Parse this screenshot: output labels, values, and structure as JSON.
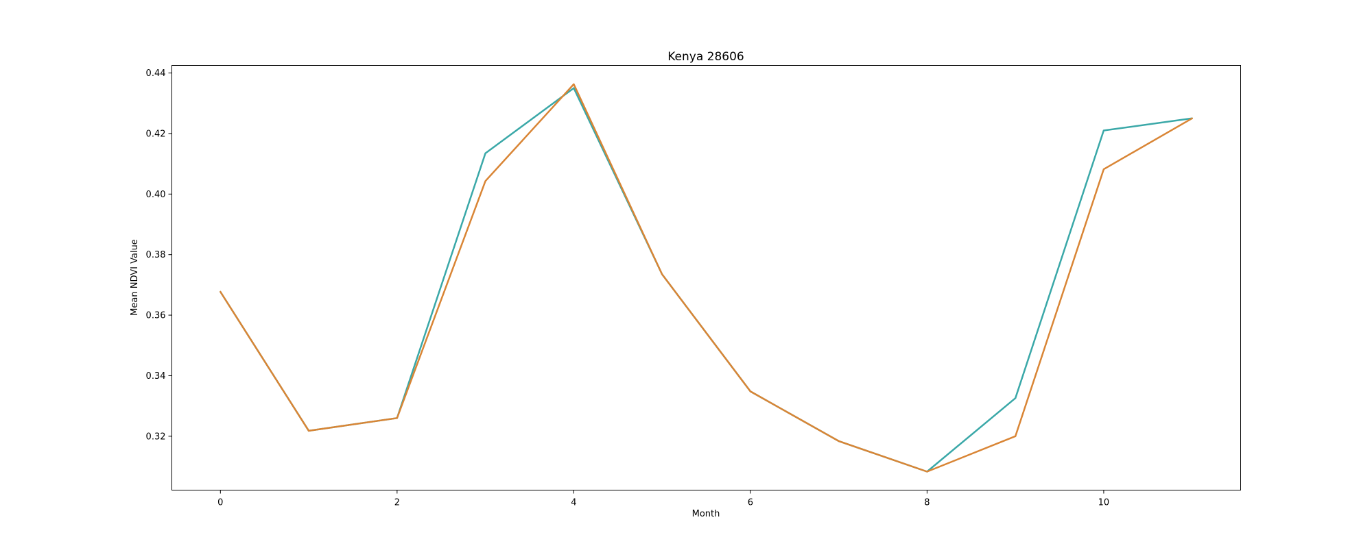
{
  "chart_data": {
    "type": "line",
    "title": "Kenya 28606",
    "xlabel": "Month",
    "ylabel": "Mean NDVI Value",
    "x": [
      0,
      1,
      2,
      3,
      4,
      5,
      6,
      7,
      8,
      9,
      10,
      11
    ],
    "xlim": [
      -0.55,
      11.55
    ],
    "ylim": [
      0.3022,
      0.4425
    ],
    "xticks": [
      0,
      2,
      4,
      6,
      8,
      10
    ],
    "yticks": [
      0.32,
      0.34,
      0.36,
      0.38,
      0.4,
      0.42,
      0.44
    ],
    "ytick_labels": [
      "0.32",
      "0.34",
      "0.36",
      "0.38",
      "0.40",
      "0.42",
      "0.44"
    ],
    "grid": false,
    "series": [
      {
        "color": "#3aa8a8",
        "values": [
          0.3677,
          0.3218,
          0.326,
          0.4135,
          0.435,
          0.3735,
          0.3348,
          0.3184,
          0.3083,
          0.3326,
          0.421,
          0.425
        ]
      },
      {
        "color": "#d98535",
        "values": [
          0.3677,
          0.3218,
          0.326,
          0.4043,
          0.4363,
          0.3735,
          0.3348,
          0.3184,
          0.3083,
          0.32,
          0.4082,
          0.425
        ]
      }
    ]
  }
}
